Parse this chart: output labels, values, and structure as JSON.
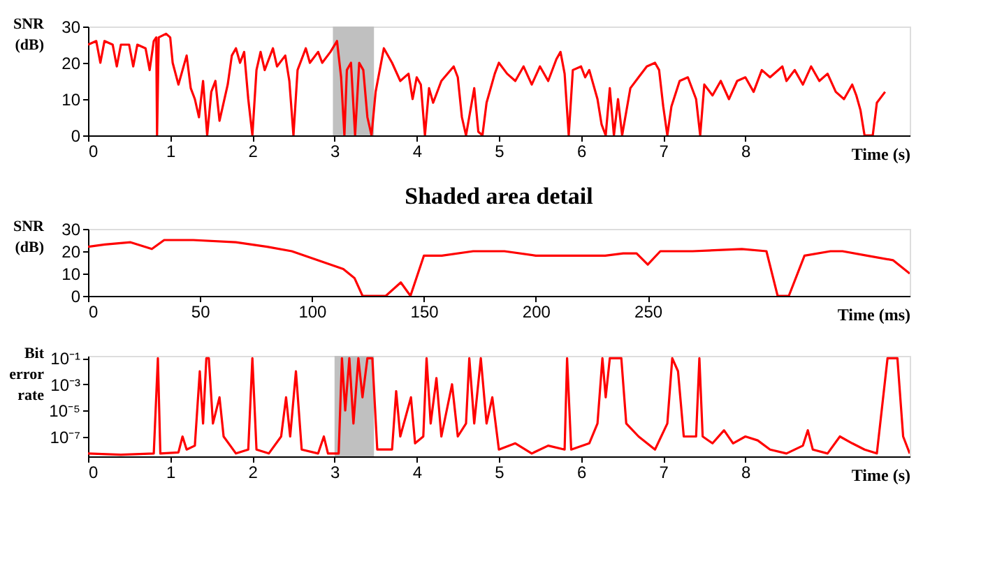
{
  "chart_data": [
    {
      "type": "line",
      "xlabel": "Time (s)",
      "ylabel": "SNR (dB)",
      "xlim": [
        0,
        10
      ],
      "xticks": [
        0,
        1,
        2,
        3,
        4,
        5,
        6,
        7,
        8
      ],
      "ylim": [
        0,
        30
      ],
      "yticks": [
        0,
        10,
        20,
        30
      ],
      "bands": [
        {
          "axis": "x",
          "from": 2.98,
          "to": 3.48,
          "color": "#c0c0c0"
        }
      ],
      "series": [
        {
          "color": "#ff0000",
          "x": [
            0,
            0.1,
            0.15,
            0.2,
            0.3,
            0.35,
            0.4,
            0.5,
            0.55,
            0.6,
            0.7,
            0.75,
            0.8,
            0.83,
            0.84,
            0.86,
            0.95,
            1.0,
            1.03,
            1.1,
            1.2,
            1.25,
            1.3,
            1.35,
            1.4,
            1.45,
            1.5,
            1.55,
            1.6,
            1.7,
            1.75,
            1.8,
            1.85,
            1.9,
            1.95,
            2.0,
            2.05,
            2.1,
            2.15,
            2.25,
            2.3,
            2.4,
            2.45,
            2.5,
            2.55,
            2.65,
            2.7,
            2.8,
            2.85,
            2.95,
            3.03,
            3.08,
            3.12,
            3.15,
            3.2,
            3.25,
            3.3,
            3.35,
            3.4,
            3.45,
            3.5,
            3.6,
            3.7,
            3.8,
            3.9,
            3.95,
            4.0,
            4.05,
            4.1,
            4.15,
            4.2,
            4.3,
            4.45,
            4.5,
            4.55,
            4.6,
            4.7,
            4.75,
            4.8,
            4.85,
            4.95,
            5.0,
            5.1,
            5.2,
            5.3,
            5.4,
            5.5,
            5.6,
            5.7,
            5.75,
            5.8,
            5.85,
            5.9,
            6.0,
            6.05,
            6.1,
            6.2,
            6.25,
            6.3,
            6.35,
            6.4,
            6.45,
            6.5,
            6.6,
            6.7,
            6.8,
            6.9,
            6.95,
            7.0,
            7.05,
            7.1,
            7.2,
            7.3,
            7.4,
            7.45,
            7.5,
            7.6,
            7.7,
            7.8,
            7.9,
            8.0,
            8.1,
            8.2,
            8.3,
            8.45,
            8.5,
            8.6,
            8.7,
            8.8,
            8.9,
            9.0,
            9.1,
            9.2,
            9.3,
            9.35,
            9.4,
            9.45,
            9.55,
            9.6,
            9.7
          ],
          "values": [
            25,
            26,
            20,
            26,
            25,
            19,
            25,
            25,
            19,
            25,
            24,
            18,
            26,
            27,
            0,
            27,
            28,
            27,
            20,
            14,
            22,
            13,
            10,
            5,
            15,
            0,
            12,
            15,
            4,
            14,
            22,
            24,
            20,
            23,
            10,
            0,
            18,
            23,
            18,
            24,
            19,
            22,
            15,
            0,
            18,
            24,
            20,
            23,
            20,
            23,
            26,
            16,
            0,
            18,
            20,
            0,
            20,
            18,
            5,
            0,
            12,
            24,
            20,
            15,
            17,
            10,
            16,
            14,
            0,
            13,
            9,
            15,
            19,
            16,
            5,
            0,
            13,
            1,
            0,
            9,
            17,
            20,
            17,
            15,
            19,
            14,
            19,
            15,
            21,
            23,
            17,
            0,
            18,
            19,
            16,
            18,
            10,
            3,
            0,
            13,
            0,
            10,
            0,
            13,
            16,
            19,
            20,
            18,
            8,
            0,
            8,
            15,
            16,
            10,
            0,
            14,
            11,
            15,
            10,
            15,
            16,
            12,
            18,
            16,
            19,
            15,
            18,
            14,
            19,
            15,
            17,
            12,
            10,
            14,
            11,
            7,
            0,
            0,
            9,
            12
          ]
        }
      ]
    },
    {
      "type": "line",
      "title": "Shaded area detail",
      "xlabel": "Time (ms)",
      "ylabel": "SNR (dB)",
      "xlim": [
        0,
        367
      ],
      "xticks": [
        0,
        50,
        100,
        150,
        200,
        250
      ],
      "ylim": [
        0,
        30
      ],
      "yticks": [
        0,
        10,
        20,
        30
      ],
      "series": [
        {
          "color": "#ff0000",
          "x": [
            0,
            7.5,
            19,
            28.5,
            34,
            47,
            66,
            80,
            91,
            102.5,
            114,
            119,
            122.6,
            133,
            139.7,
            144,
            150,
            158,
            172,
            186,
            200,
            214,
            231,
            239,
            245,
            250,
            255.6,
            270,
            292,
            303,
            308,
            313,
            320,
            331.6,
            337,
            348,
            359.5,
            367
          ],
          "values": [
            22,
            23,
            24,
            21,
            25,
            25,
            24,
            22,
            20,
            16,
            12,
            8,
            0,
            0,
            6,
            0,
            18,
            18,
            20,
            20,
            18,
            18,
            18,
            19,
            19,
            14,
            20,
            20,
            21,
            20,
            0,
            0,
            18,
            20,
            20,
            18,
            16,
            10
          ]
        }
      ]
    },
    {
      "type": "line",
      "xlabel": "Time (s)",
      "ylabel": "Bit error rate",
      "log": "y",
      "xlim": [
        0,
        10
      ],
      "xticks": [
        0,
        1,
        2,
        3,
        4,
        5,
        6,
        7,
        8
      ],
      "ylim": [
        3e-09,
        0.15
      ],
      "yticks": [
        {
          "value": 0.1,
          "label": "10⁻¹"
        },
        {
          "value": 0.001,
          "label": "10⁻³"
        },
        {
          "value": 1e-05,
          "label": "10⁻⁵"
        },
        {
          "value": 1e-07,
          "label": "10⁻⁷"
        }
      ],
      "bands": [
        {
          "axis": "x",
          "from": 3.0,
          "to": 3.48,
          "color": "#c0c0c0"
        }
      ],
      "series": [
        {
          "color": "#ff0000",
          "x": [
            0,
            0.4,
            0.8,
            0.85,
            0.88,
            1.1,
            1.15,
            1.2,
            1.3,
            1.36,
            1.4,
            1.44,
            1.47,
            1.52,
            1.6,
            1.65,
            1.8,
            1.95,
            2.0,
            2.05,
            2.2,
            2.35,
            2.41,
            2.46,
            2.53,
            2.6,
            2.8,
            2.87,
            2.92,
            3.05,
            3.09,
            3.13,
            3.18,
            3.23,
            3.29,
            3.34,
            3.4,
            3.46,
            3.52,
            3.7,
            3.75,
            3.8,
            3.93,
            3.98,
            4.08,
            4.12,
            4.17,
            4.24,
            4.3,
            4.43,
            4.5,
            4.6,
            4.64,
            4.7,
            4.78,
            4.85,
            4.92,
            5.0,
            5.2,
            5.4,
            5.6,
            5.8,
            5.83,
            5.88,
            6.1,
            6.2,
            6.26,
            6.3,
            6.35,
            6.43,
            6.49,
            6.55,
            6.7,
            6.9,
            7.05,
            7.11,
            7.18,
            7.25,
            7.4,
            7.44,
            7.48,
            7.6,
            7.74,
            7.85,
            8.0,
            8.15,
            8.3,
            8.5,
            8.7,
            8.76,
            8.82,
            9.0,
            9.15,
            9.3,
            9.45,
            9.6,
            9.73,
            9.85,
            9.92,
            10.0
          ],
          "values": [
            5e-09,
            4e-09,
            5e-09,
            0.1,
            5e-09,
            6e-09,
            1e-07,
            1e-08,
            2e-08,
            0.01,
            1e-06,
            0.1,
            0.1,
            1e-06,
            0.0001,
            1e-07,
            5e-09,
            1e-08,
            0.1,
            1e-08,
            5e-09,
            1e-07,
            0.0001,
            1e-07,
            0.01,
            1e-08,
            5e-09,
            1e-07,
            5e-09,
            5e-09,
            0.1,
            1e-05,
            0.1,
            1e-06,
            0.1,
            0.0001,
            0.1,
            0.1,
            1e-08,
            1e-08,
            0.0003,
            1e-07,
            0.0001,
            3e-08,
            1e-07,
            0.1,
            1e-06,
            0.003,
            1e-07,
            0.001,
            1e-07,
            1e-06,
            0.1,
            1e-06,
            0.1,
            1e-06,
            0.0001,
            1e-08,
            3e-08,
            5e-09,
            2e-08,
            1e-08,
            0.1,
            1e-08,
            3e-08,
            1e-06,
            0.1,
            0.0001,
            0.1,
            0.1,
            0.1,
            1e-06,
            1e-07,
            1e-08,
            1e-06,
            0.1,
            0.01,
            1e-07,
            1e-07,
            0.1,
            1e-07,
            3e-08,
            3e-07,
            3e-08,
            1e-07,
            5e-08,
            1e-08,
            5e-09,
            2e-08,
            3e-07,
            1e-08,
            5e-09,
            1e-07,
            3e-08,
            1e-08,
            5e-09,
            0.1,
            0.1,
            1e-07,
            5e-09
          ]
        }
      ]
    }
  ]
}
